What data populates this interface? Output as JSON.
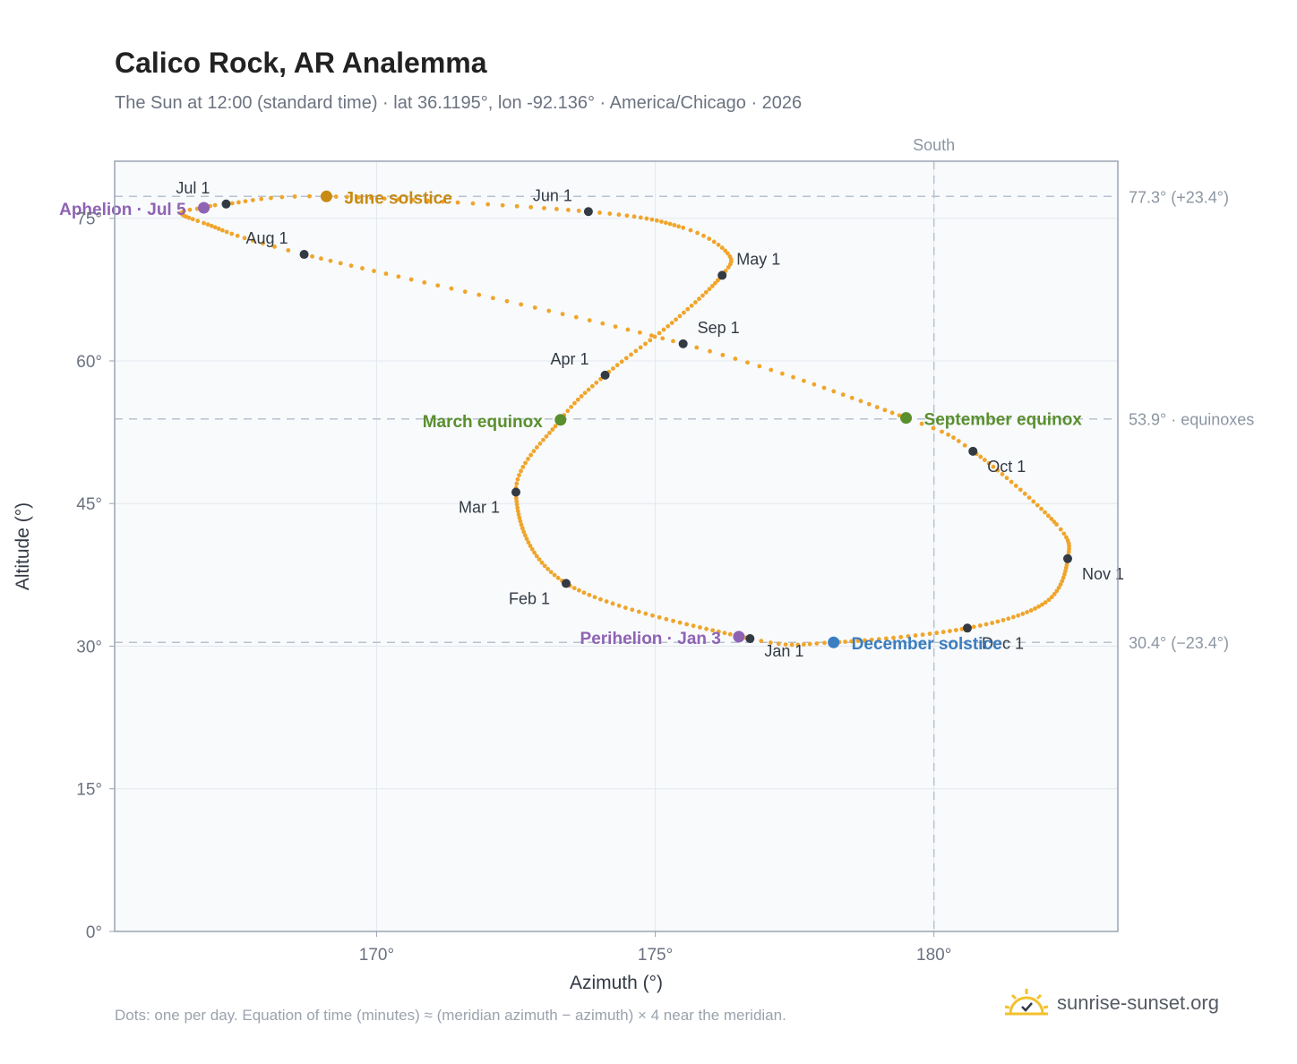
{
  "title": "Calico Rock, AR Analemma",
  "subtitle": "The Sun at 12:00 (standard time) · lat 36.1195°, lon -92.136° · America/Chicago · 2026",
  "footnote": "Dots: one per day. Equation of time (minutes) ≈ (meridian azimuth − azimuth) × 4 near the meridian.",
  "brand": {
    "text": "sunrise-sunset.org",
    "icon": "sun-logo-icon",
    "color": "#f2c12e"
  },
  "chart_data": {
    "type": "scatter",
    "xlabel": "Azimuth (°)",
    "ylabel": "Altitude (°)",
    "xlim": [
      165.3,
      183.3
    ],
    "ylim": [
      0,
      81
    ],
    "xticks": [
      170,
      175,
      180
    ],
    "yticks": [
      0,
      15,
      30,
      45,
      60,
      75
    ],
    "x_tick_suffix": "°",
    "y_tick_suffix": "°",
    "grid": true,
    "meridian": {
      "azimuth": 180,
      "label": "South"
    },
    "reference_lines": [
      {
        "altitude": 77.3,
        "label": "77.3° (+23.4°)"
      },
      {
        "altitude": 53.9,
        "label": "53.9° · equinoxes"
      },
      {
        "altitude": 30.4,
        "label": "30.4° (−23.4°)"
      }
    ],
    "path_color": "#f0a52a",
    "path_keypoints": [
      {
        "doy": 1,
        "az": 176.7,
        "alt": 30.8
      },
      {
        "doy": 32,
        "az": 173.4,
        "alt": 36.6
      },
      {
        "doy": 60,
        "az": 172.5,
        "alt": 46.2
      },
      {
        "doy": 79,
        "az": 173.3,
        "alt": 53.8
      },
      {
        "doy": 91,
        "az": 174.1,
        "alt": 58.5
      },
      {
        "doy": 106,
        "az": 175.3,
        "alt": 64.0
      },
      {
        "doy": 121,
        "az": 176.2,
        "alt": 69.0
      },
      {
        "doy": 128,
        "az": 176.3,
        "alt": 71.3
      },
      {
        "doy": 137,
        "az": 175.5,
        "alt": 74.0
      },
      {
        "doy": 152,
        "az": 173.8,
        "alt": 75.7
      },
      {
        "doy": 172,
        "az": 169.1,
        "alt": 77.3
      },
      {
        "doy": 182,
        "az": 167.3,
        "alt": 76.5
      },
      {
        "doy": 186,
        "az": 166.9,
        "alt": 76.1
      },
      {
        "doy": 190,
        "az": 166.5,
        "alt": 75.6
      },
      {
        "doy": 199,
        "az": 166.9,
        "alt": 74.5
      },
      {
        "doy": 213,
        "az": 168.7,
        "alt": 71.2
      },
      {
        "doy": 244,
        "az": 175.5,
        "alt": 61.8
      },
      {
        "doy": 266,
        "az": 179.5,
        "alt": 54.0
      },
      {
        "doy": 274,
        "az": 180.7,
        "alt": 50.5
      },
      {
        "doy": 295,
        "az": 182.2,
        "alt": 42.8
      },
      {
        "doy": 305,
        "az": 182.4,
        "alt": 39.2
      },
      {
        "doy": 319,
        "az": 182.0,
        "alt": 34.6
      },
      {
        "doy": 335,
        "az": 180.6,
        "alt": 31.9
      },
      {
        "doy": 355,
        "az": 178.2,
        "alt": 30.4
      },
      {
        "doy": 366,
        "az": 176.7,
        "alt": 30.8
      }
    ],
    "month_markers": [
      {
        "label": "Jan 1",
        "az": 176.7,
        "alt": 30.8,
        "anchor": "start",
        "dx": 16,
        "dy": 20
      },
      {
        "label": "Feb 1",
        "az": 173.4,
        "alt": 36.6,
        "anchor": "end",
        "dx": -18,
        "dy": 23
      },
      {
        "label": "Mar 1",
        "az": 172.5,
        "alt": 46.2,
        "anchor": "end",
        "dx": -18,
        "dy": 23
      },
      {
        "label": "Apr 1",
        "az": 174.1,
        "alt": 58.5,
        "anchor": "end",
        "dx": -18,
        "dy": -12
      },
      {
        "label": "May 1",
        "az": 176.2,
        "alt": 69.0,
        "anchor": "start",
        "dx": 16,
        "dy": -12
      },
      {
        "label": "Jun 1",
        "az": 173.8,
        "alt": 75.7,
        "anchor": "end",
        "dx": -18,
        "dy": -12
      },
      {
        "label": "Jul 1",
        "az": 167.3,
        "alt": 76.5,
        "anchor": "end",
        "dx": -18,
        "dy": -12
      },
      {
        "label": "Aug 1",
        "az": 168.7,
        "alt": 71.2,
        "anchor": "end",
        "dx": -18,
        "dy": -12
      },
      {
        "label": "Sep 1",
        "az": 175.5,
        "alt": 61.8,
        "anchor": "start",
        "dx": 16,
        "dy": -12
      },
      {
        "label": "Oct 1",
        "az": 180.7,
        "alt": 50.5,
        "anchor": "start",
        "dx": 16,
        "dy": 23
      },
      {
        "label": "Nov 1",
        "az": 182.4,
        "alt": 39.2,
        "anchor": "start",
        "dx": 16,
        "dy": 23
      },
      {
        "label": "Dec 1",
        "az": 180.6,
        "alt": 31.9,
        "anchor": "start",
        "dx": 16,
        "dy": 23
      }
    ],
    "events": [
      {
        "label": "June solstice",
        "az": 169.1,
        "alt": 77.3,
        "color": "#c88a12",
        "anchor": "start",
        "dx": 20,
        "dy": 8
      },
      {
        "label": "March equinox",
        "az": 173.3,
        "alt": 53.8,
        "color": "#5a8f2e",
        "anchor": "end",
        "dx": -20,
        "dy": 8
      },
      {
        "label": "September equinox",
        "az": 179.5,
        "alt": 54.0,
        "color": "#5a8f2e",
        "anchor": "start",
        "dx": 20,
        "dy": 8
      },
      {
        "label": "December solstice",
        "az": 178.2,
        "alt": 30.4,
        "color": "#3a7dc0",
        "anchor": "start",
        "dx": 20,
        "dy": 8
      },
      {
        "label": "Aphelion · Jul 5",
        "az": 166.9,
        "alt": 76.1,
        "color": "#8e63b4",
        "anchor": "end",
        "dx": -20,
        "dy": 8
      },
      {
        "label": "Perihelion · Jan 3",
        "az": 176.5,
        "alt": 31.0,
        "color": "#8e63b4",
        "anchor": "end",
        "dx": -20,
        "dy": 8
      }
    ]
  }
}
